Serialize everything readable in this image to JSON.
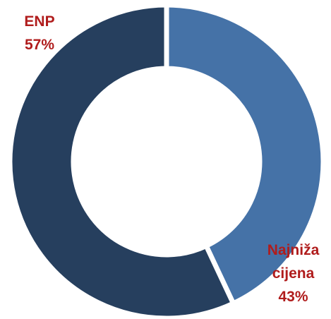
{
  "chart_data": {
    "type": "donut",
    "categories": [
      "Najniža cijena",
      "ENP"
    ],
    "values": [
      43,
      57
    ],
    "value_labels": [
      "43%",
      "57%"
    ],
    "colors": [
      "#4572a7",
      "#263f5e"
    ],
    "label_color": "#b01c1c"
  }
}
